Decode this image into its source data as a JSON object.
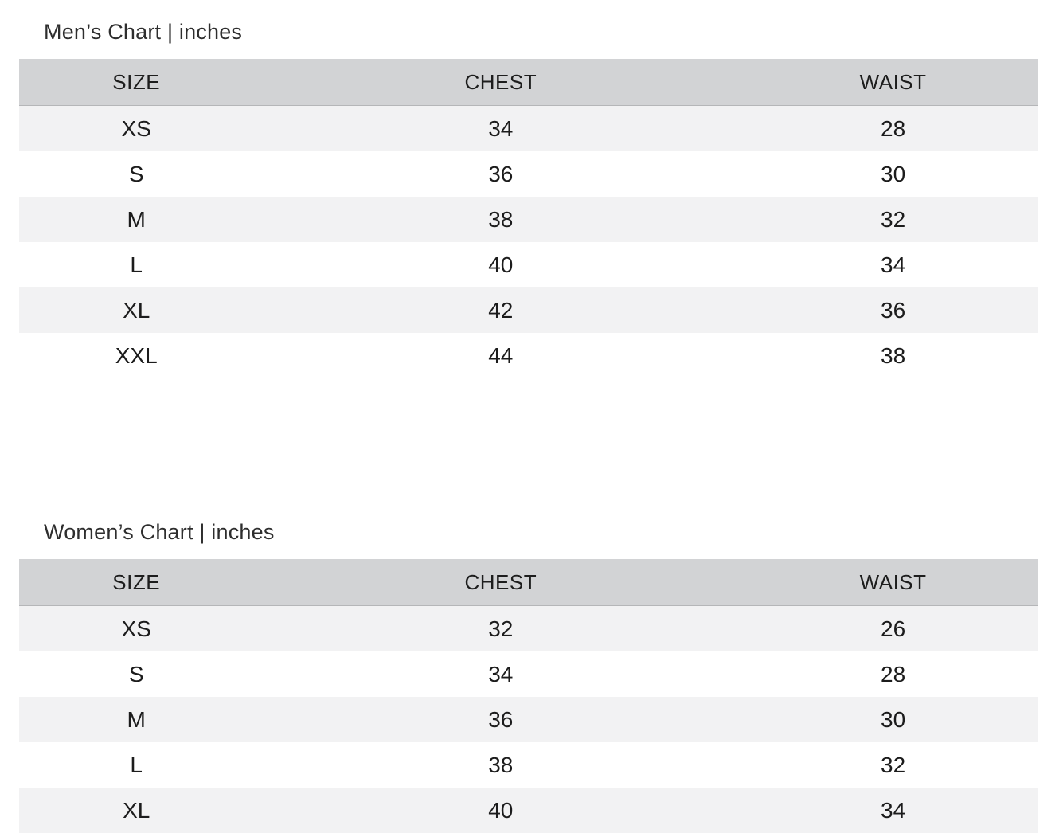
{
  "colors": {
    "page_bg": "#ffffff",
    "header_bg": "#d2d3d5",
    "row_alt_bg": "#f2f2f3",
    "row_bg": "#ffffff",
    "header_text": "#1d1d1d",
    "cell_text": "#1c1c1c",
    "title_text": "#2e2e2e"
  },
  "chart_data": [
    {
      "type": "table",
      "title": "Men’s Chart | inches",
      "units": "inches",
      "columns": [
        "SIZE",
        "CHEST",
        "WAIST"
      ],
      "rows": [
        [
          "XS",
          34,
          28
        ],
        [
          "S",
          36,
          30
        ],
        [
          "M",
          38,
          32
        ],
        [
          "L",
          40,
          34
        ],
        [
          "XL",
          42,
          36
        ],
        [
          "XXL",
          44,
          38
        ]
      ]
    },
    {
      "type": "table",
      "title": "Women’s Chart | inches",
      "units": "inches",
      "columns": [
        "SIZE",
        "CHEST",
        "WAIST"
      ],
      "rows": [
        [
          "XS",
          32,
          26
        ],
        [
          "S",
          34,
          28
        ],
        [
          "M",
          36,
          30
        ],
        [
          "L",
          38,
          32
        ],
        [
          "XL",
          40,
          34
        ]
      ]
    }
  ]
}
